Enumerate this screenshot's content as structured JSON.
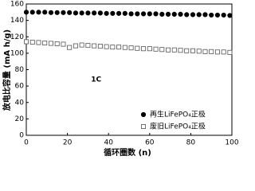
{
  "chart_data": {
    "type": "scatter",
    "x_label": "循环圈数 (n)",
    "y_label": "放电比容量 (mA h/g)",
    "annotation": {
      "text": "1C",
      "x": 34,
      "y": 68
    },
    "x": [
      0,
      3,
      6,
      9,
      12,
      15,
      18,
      21,
      24,
      27,
      30,
      33,
      36,
      39,
      42,
      45,
      48,
      51,
      54,
      57,
      60,
      63,
      66,
      69,
      72,
      75,
      78,
      81,
      84,
      87,
      90,
      93,
      96,
      99
    ],
    "series": [
      {
        "name": "再生LiFePO₄正极",
        "color": "#000000",
        "marker": "circle",
        "values": [
          150,
          150,
          150,
          150,
          149.5,
          149.5,
          149.5,
          149.5,
          149,
          149,
          149,
          149,
          149,
          148.5,
          148.5,
          148.5,
          148.5,
          148,
          148,
          148,
          148,
          148,
          147.5,
          147.5,
          147.5,
          147.5,
          147,
          147,
          147,
          147,
          146.5,
          146.5,
          146.5,
          146
        ]
      },
      {
        "name": "废旧LiFePO₄正极",
        "color": "#555555",
        "marker": "square",
        "values": [
          114,
          113.5,
          113,
          112.5,
          112,
          111.5,
          111,
          107,
          109,
          110,
          109.5,
          109,
          108.5,
          108,
          107.5,
          107.5,
          107,
          106.5,
          106,
          105.5,
          105.5,
          105,
          104.5,
          104,
          104,
          103.5,
          103,
          103,
          102.5,
          102,
          102,
          101.5,
          101.5,
          101
        ]
      }
    ],
    "xlim": [
      0,
      100
    ],
    "xticks": [
      0,
      20,
      40,
      60,
      80,
      100
    ],
    "ylim": [
      0,
      160
    ],
    "yticks": [
      0,
      20,
      40,
      60,
      80,
      100,
      120,
      140,
      160
    ],
    "legend": "lower right"
  }
}
